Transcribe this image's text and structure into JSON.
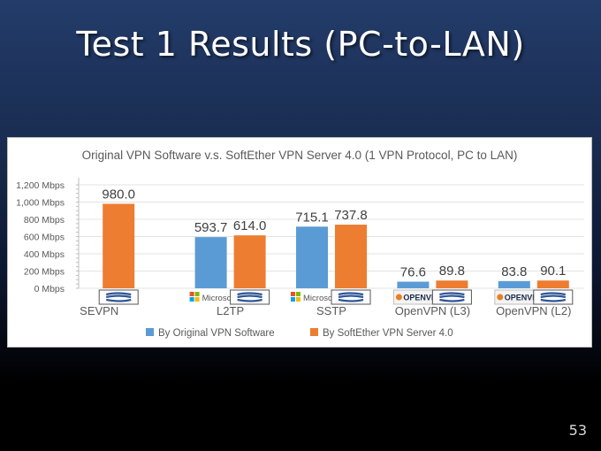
{
  "slide": {
    "title": "Test 1 Results (PC-to-LAN)",
    "page_number": "53"
  },
  "colors": {
    "series_original": "#5b9bd5",
    "series_softether": "#ed7d31"
  },
  "logos": {
    "microsoft": "Microsoft",
    "openvpn": "OPENVPN"
  },
  "chart_data": {
    "type": "bar",
    "title": "Original VPN Software v.s. SoftEther VPN Server 4.0 (1 VPN Protocol, PC to LAN)",
    "categories": [
      "SEVPN",
      "L2TP",
      "SSTP",
      "OpenVPN (L3)",
      "OpenVPN (L2)"
    ],
    "series": [
      {
        "name": "By Original VPN Software",
        "values": [
          null,
          593.7,
          715.1,
          76.6,
          83.8
        ]
      },
      {
        "name": "By SoftEther VPN Server 4.0",
        "values": [
          980.0,
          614.0,
          737.8,
          89.8,
          90.1
        ]
      }
    ],
    "data_labels": [
      [
        "",
        "593.7",
        "715.1",
        "76.6",
        "83.8"
      ],
      [
        "980.0",
        "614.0",
        "737.8",
        "89.8",
        "90.1"
      ]
    ],
    "original_logos": [
      "",
      "microsoft",
      "microsoft",
      "openvpn",
      "openvpn"
    ],
    "yticks": [
      0,
      200,
      400,
      600,
      800,
      1000,
      1200
    ],
    "ytick_labels": [
      "0 Mbps",
      "200 Mbps",
      "400 Mbps",
      "600 Mbps",
      "800 Mbps",
      "1,000 Mbps",
      "1,200 Mbps"
    ],
    "ylim": [
      0,
      1200
    ],
    "grid": true,
    "legend_position": "bottom"
  }
}
